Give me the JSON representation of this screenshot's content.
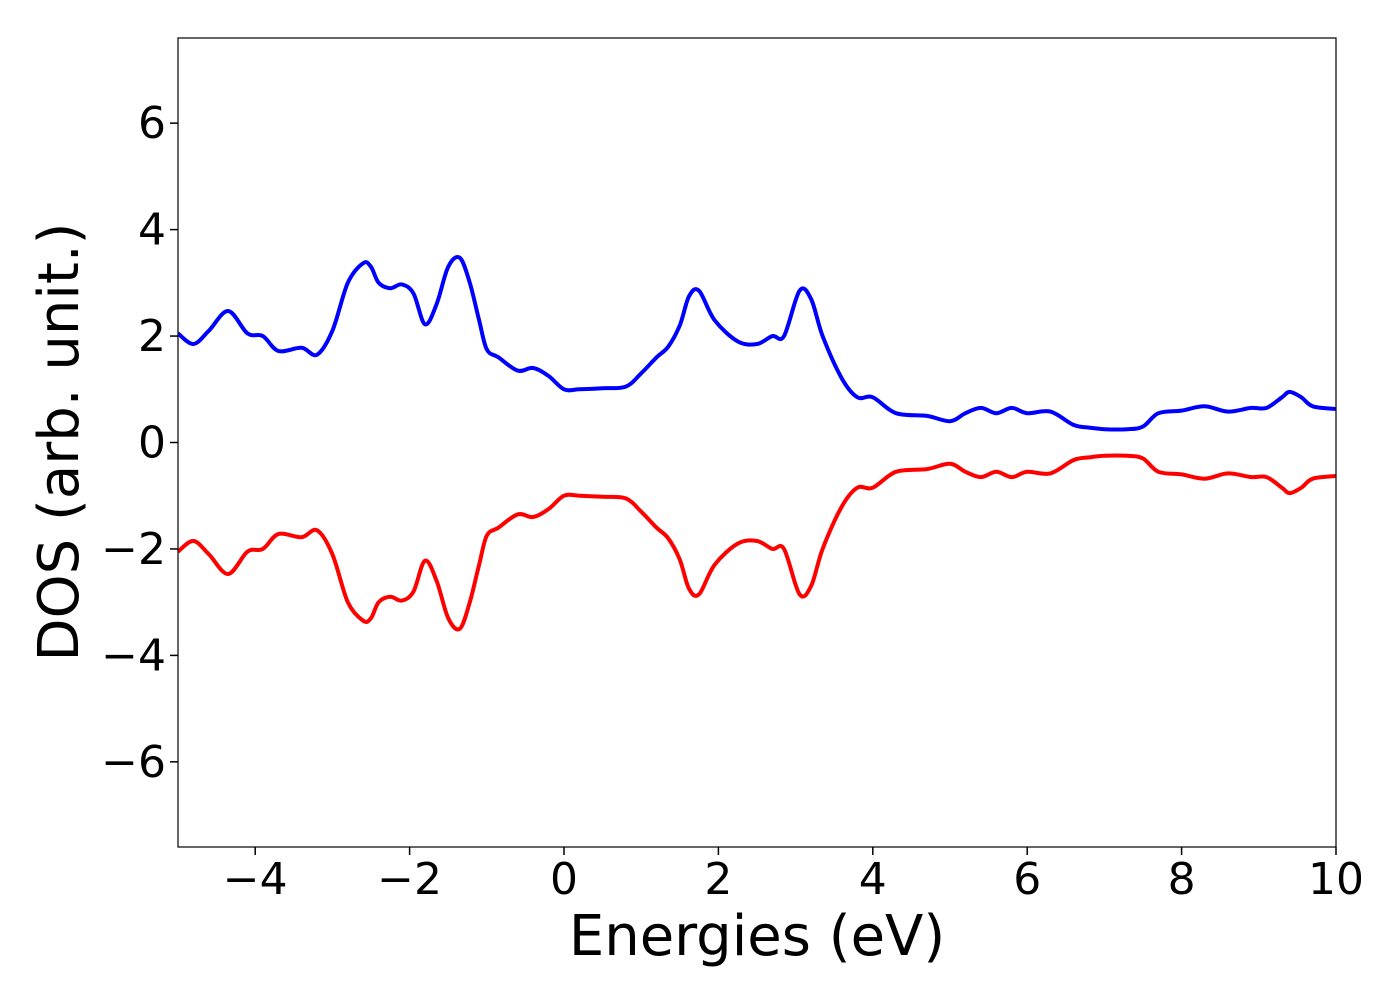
{
  "chart_data": {
    "type": "line",
    "title": "",
    "xlabel": "Energies (eV)",
    "ylabel": "DOS (arb. unit.)",
    "xlim": [
      -5,
      10
    ],
    "ylim": [
      -7.6,
      7.6
    ],
    "xticks": [
      -4,
      -2,
      0,
      2,
      4,
      6,
      8,
      10
    ],
    "xtick_labels": [
      "−4",
      "−2",
      "0",
      "2",
      "4",
      "6",
      "8",
      "10"
    ],
    "yticks": [
      6,
      4,
      2,
      0,
      -2,
      -4,
      -6
    ],
    "ytick_labels": [
      "6",
      "4",
      "2",
      "0",
      "−2",
      "−4",
      "−6"
    ],
    "grid": false,
    "legend": "none",
    "series": [
      {
        "color": "#0000ff",
        "x": [
          -5.0,
          -4.8,
          -4.6,
          -4.35,
          -4.1,
          -3.9,
          -3.7,
          -3.4,
          -3.2,
          -3.0,
          -2.8,
          -2.6,
          -2.5,
          -2.4,
          -2.25,
          -2.1,
          -1.95,
          -1.8,
          -1.65,
          -1.5,
          -1.35,
          -1.22,
          -1.1,
          -1.0,
          -0.85,
          -0.6,
          -0.4,
          -0.2,
          0.0,
          0.2,
          0.5,
          0.8,
          1.0,
          1.2,
          1.35,
          1.5,
          1.62,
          1.75,
          1.95,
          2.25,
          2.5,
          2.7,
          2.85,
          3.05,
          3.2,
          3.35,
          3.6,
          3.8,
          4.0,
          4.3,
          4.7,
          5.0,
          5.2,
          5.4,
          5.6,
          5.8,
          6.0,
          6.3,
          6.6,
          6.8,
          7.0,
          7.3,
          7.5,
          7.7,
          8.0,
          8.3,
          8.6,
          8.9,
          9.1,
          9.3,
          9.4,
          9.55,
          9.7,
          10.0
        ],
        "y": [
          2.05,
          1.85,
          2.1,
          2.47,
          2.05,
          2.0,
          1.72,
          1.78,
          1.65,
          2.1,
          3.0,
          3.37,
          3.3,
          3.0,
          2.9,
          2.97,
          2.8,
          2.22,
          2.6,
          3.3,
          3.47,
          3.0,
          2.3,
          1.75,
          1.6,
          1.35,
          1.4,
          1.25,
          1.0,
          1.0,
          1.02,
          1.05,
          1.3,
          1.6,
          1.8,
          2.2,
          2.75,
          2.85,
          2.3,
          1.9,
          1.85,
          2.0,
          2.0,
          2.85,
          2.7,
          2.0,
          1.2,
          0.85,
          0.85,
          0.55,
          0.5,
          0.4,
          0.55,
          0.65,
          0.55,
          0.65,
          0.55,
          0.58,
          0.33,
          0.28,
          0.25,
          0.25,
          0.3,
          0.55,
          0.6,
          0.68,
          0.58,
          0.65,
          0.65,
          0.85,
          0.95,
          0.85,
          0.68,
          0.63
        ]
      },
      {
        "color": "#ff0000",
        "x": [
          -5.0,
          -4.8,
          -4.6,
          -4.35,
          -4.1,
          -3.9,
          -3.7,
          -3.4,
          -3.2,
          -3.0,
          -2.8,
          -2.6,
          -2.5,
          -2.4,
          -2.25,
          -2.1,
          -1.95,
          -1.8,
          -1.65,
          -1.5,
          -1.35,
          -1.22,
          -1.1,
          -1.0,
          -0.85,
          -0.6,
          -0.4,
          -0.2,
          0.0,
          0.2,
          0.5,
          0.8,
          1.0,
          1.2,
          1.35,
          1.5,
          1.62,
          1.75,
          1.95,
          2.25,
          2.5,
          2.7,
          2.85,
          3.05,
          3.2,
          3.35,
          3.6,
          3.8,
          4.0,
          4.3,
          4.7,
          5.0,
          5.2,
          5.4,
          5.6,
          5.8,
          6.0,
          6.3,
          6.6,
          6.8,
          7.0,
          7.3,
          7.5,
          7.7,
          8.0,
          8.3,
          8.6,
          8.9,
          9.1,
          9.3,
          9.4,
          9.55,
          9.7,
          10.0
        ],
        "y": [
          -2.05,
          -1.85,
          -2.1,
          -2.47,
          -2.05,
          -2.0,
          -1.72,
          -1.78,
          -1.65,
          -2.1,
          -3.0,
          -3.35,
          -3.3,
          -3.0,
          -2.9,
          -2.97,
          -2.8,
          -2.22,
          -2.6,
          -3.3,
          -3.5,
          -3.0,
          -2.3,
          -1.75,
          -1.6,
          -1.35,
          -1.4,
          -1.25,
          -1.0,
          -1.0,
          -1.02,
          -1.05,
          -1.3,
          -1.6,
          -1.8,
          -2.2,
          -2.75,
          -2.85,
          -2.3,
          -1.9,
          -1.85,
          -2.0,
          -2.0,
          -2.85,
          -2.7,
          -2.0,
          -1.2,
          -0.85,
          -0.85,
          -0.55,
          -0.5,
          -0.4,
          -0.55,
          -0.65,
          -0.55,
          -0.65,
          -0.55,
          -0.58,
          -0.33,
          -0.28,
          -0.25,
          -0.25,
          -0.3,
          -0.55,
          -0.6,
          -0.68,
          -0.58,
          -0.65,
          -0.65,
          -0.85,
          -0.95,
          -0.85,
          -0.68,
          -0.63
        ]
      }
    ]
  }
}
